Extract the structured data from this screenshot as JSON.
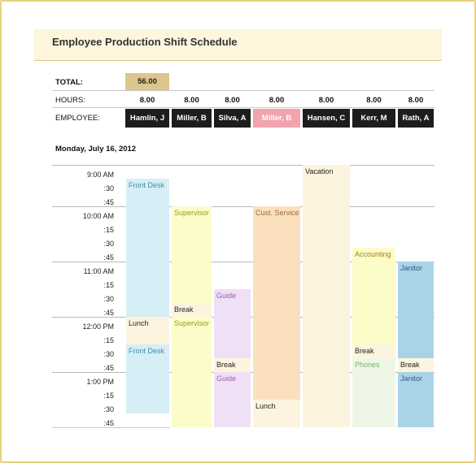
{
  "title": "Employee Production Shift Schedule",
  "labels": {
    "total": "TOTAL:",
    "hours": "HOURS:",
    "employee": "EMPLOYEE:"
  },
  "total_value": "56.00",
  "employees": [
    {
      "name": "Hamlin, J",
      "hours": "8.00"
    },
    {
      "name": "Miller, B",
      "hours": "8.00"
    },
    {
      "name": "Silva, A",
      "hours": "8.00"
    },
    {
      "name": "Miller, B",
      "hours": "8.00",
      "highlight": true
    },
    {
      "name": "Hansen, C",
      "hours": "8.00"
    },
    {
      "name": "Kerr, M",
      "hours": "8.00"
    },
    {
      "name": "Rath, A",
      "hours": "8.00"
    }
  ],
  "date": "Monday, July 16, 2012",
  "times": [
    "9:00 AM",
    ":30",
    ":45",
    "10:00 AM",
    ":15",
    ":30",
    ":45",
    "11:00 AM",
    ":15",
    ":30",
    ":45",
    "12:00 PM",
    ":15",
    ":30",
    ":45",
    "1:00 PM",
    ":15",
    ":30",
    ":45"
  ],
  "blocks": {
    "front_desk_1": "Front Desk",
    "lunch_1": "Lunch",
    "front_desk_2": "Front Desk",
    "supervisor_1": "Supervisor",
    "break_1": "Break",
    "supervisor_2": "Supervisor",
    "guide_1": "Guide",
    "break_2": "Break",
    "guide_2": "Guide",
    "cust_service": "Cust. Service",
    "lunch_2": "Lunch",
    "vacation": "Vacation",
    "accounting": "Accounting",
    "break_3": "Break",
    "phones": "Phones",
    "janitor_1": "Janitor",
    "break_4": "Break",
    "janitor_2": "Janitor"
  },
  "colors": {
    "blue": "#d6eef6",
    "yellow": "#fcfcc8",
    "purple": "#f0e0f6",
    "peach": "#fbe0be",
    "cream": "#fdf4e0",
    "steel": "#a9d4e8",
    "mint": "#eef7e6",
    "dark": "#1d1d1d",
    "pink": "#f3a3ad",
    "tan": "#dcc58e"
  }
}
